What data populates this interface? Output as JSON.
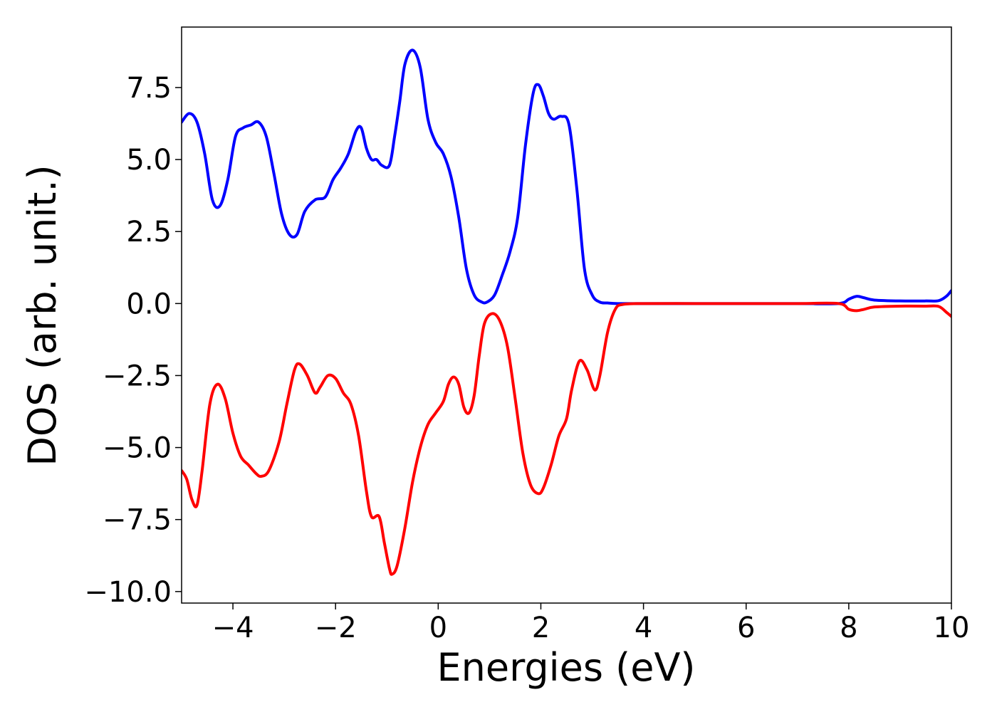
{
  "chart_data": {
    "type": "line",
    "title": "",
    "xlabel": "Energies (eV)",
    "ylabel": "DOS (arb. unit.)",
    "xlim": [
      -5,
      10
    ],
    "ylim": [
      -10.4,
      9.6
    ],
    "xticks": [
      -4,
      -2,
      0,
      2,
      4,
      6,
      8,
      10
    ],
    "xtick_labels": [
      "−4",
      "−2",
      "0",
      "2",
      "4",
      "6",
      "8",
      "10"
    ],
    "yticks": [
      7.5,
      5.0,
      2.5,
      0.0,
      -2.5,
      -5.0,
      -7.5,
      -10.0
    ],
    "ytick_labels": [
      "7.5",
      "5.0",
      "2.5",
      "0.0",
      "−2.5",
      "−5.0",
      "−7.5",
      "−10.0"
    ],
    "grid": false,
    "legend": "none",
    "series": [
      {
        "color": "#0000ff",
        "x": [
          -5.0,
          -4.85,
          -4.7,
          -4.55,
          -4.4,
          -4.25,
          -4.1,
          -3.95,
          -3.8,
          -3.65,
          -3.5,
          -3.35,
          -3.2,
          -3.05,
          -2.9,
          -2.75,
          -2.6,
          -2.4,
          -2.2,
          -2.05,
          -1.9,
          -1.75,
          -1.6,
          -1.5,
          -1.4,
          -1.3,
          -1.2,
          -1.1,
          -0.95,
          -0.85,
          -0.75,
          -0.65,
          -0.5,
          -0.35,
          -0.2,
          -0.05,
          0.1,
          0.25,
          0.4,
          0.55,
          0.7,
          0.85,
          0.95,
          1.1,
          1.25,
          1.4,
          1.55,
          1.7,
          1.85,
          1.95,
          2.05,
          2.15,
          2.25,
          2.4,
          2.55,
          2.7,
          2.85,
          3.0,
          3.15,
          3.3,
          3.5,
          4.0,
          5.0,
          6.0,
          7.0,
          7.8,
          8.0,
          8.15,
          8.3,
          8.5,
          9.0,
          9.5,
          9.75,
          9.9,
          10.0
        ],
        "y": [
          6.3,
          6.6,
          6.3,
          5.2,
          3.6,
          3.4,
          4.3,
          5.8,
          6.1,
          6.2,
          6.3,
          5.8,
          4.5,
          3.1,
          2.4,
          2.4,
          3.2,
          3.6,
          3.7,
          4.3,
          4.7,
          5.2,
          6.0,
          6.1,
          5.4,
          5.0,
          5.0,
          4.8,
          4.8,
          5.8,
          7.0,
          8.3,
          8.8,
          8.2,
          6.4,
          5.6,
          5.2,
          4.4,
          3.0,
          1.2,
          0.3,
          0.05,
          0.05,
          0.3,
          1.0,
          1.8,
          3.0,
          5.5,
          7.3,
          7.6,
          7.2,
          6.6,
          6.4,
          6.5,
          6.2,
          4.0,
          1.2,
          0.3,
          0.05,
          0.02,
          0.0,
          0.0,
          0.0,
          0.0,
          0.0,
          0.0,
          0.15,
          0.25,
          0.2,
          0.12,
          0.09,
          0.09,
          0.1,
          0.25,
          0.45
        ]
      },
      {
        "color": "#ff0000",
        "x": [
          -5.0,
          -4.9,
          -4.8,
          -4.7,
          -4.6,
          -4.45,
          -4.3,
          -4.15,
          -4.0,
          -3.85,
          -3.7,
          -3.55,
          -3.45,
          -3.3,
          -3.1,
          -2.95,
          -2.8,
          -2.7,
          -2.55,
          -2.4,
          -2.3,
          -2.15,
          -2.0,
          -1.85,
          -1.7,
          -1.55,
          -1.4,
          -1.3,
          -1.15,
          -1.05,
          -0.95,
          -0.9,
          -0.8,
          -0.65,
          -0.5,
          -0.35,
          -0.2,
          -0.05,
          0.1,
          0.2,
          0.3,
          0.4,
          0.5,
          0.6,
          0.7,
          0.8,
          0.9,
          1.05,
          1.2,
          1.35,
          1.5,
          1.65,
          1.8,
          1.95,
          2.05,
          2.2,
          2.35,
          2.5,
          2.6,
          2.75,
          2.9,
          3.05,
          3.15,
          3.3,
          3.45,
          3.6,
          4.0,
          5.0,
          6.0,
          7.0,
          7.8,
          8.0,
          8.15,
          8.3,
          8.5,
          9.0,
          9.5,
          9.75,
          9.9,
          10.0
        ],
        "y": [
          -5.8,
          -6.1,
          -6.8,
          -7.0,
          -5.8,
          -3.5,
          -2.8,
          -3.3,
          -4.5,
          -5.3,
          -5.6,
          -5.9,
          -6.0,
          -5.8,
          -4.8,
          -3.5,
          -2.3,
          -2.1,
          -2.5,
          -3.1,
          -2.9,
          -2.5,
          -2.6,
          -3.1,
          -3.5,
          -4.6,
          -6.5,
          -7.4,
          -7.4,
          -8.3,
          -9.2,
          -9.4,
          -9.1,
          -7.8,
          -6.2,
          -5.0,
          -4.2,
          -3.8,
          -3.4,
          -2.8,
          -2.55,
          -2.8,
          -3.6,
          -3.8,
          -3.2,
          -1.8,
          -0.7,
          -0.35,
          -0.6,
          -1.5,
          -3.3,
          -5.2,
          -6.3,
          -6.6,
          -6.4,
          -5.6,
          -4.6,
          -4.0,
          -3.0,
          -2.0,
          -2.3,
          -3.0,
          -2.5,
          -1.0,
          -0.2,
          -0.03,
          0.0,
          0.0,
          0.0,
          0.0,
          0.0,
          -0.2,
          -0.25,
          -0.2,
          -0.12,
          -0.09,
          -0.09,
          -0.1,
          -0.3,
          -0.45
        ]
      }
    ]
  }
}
